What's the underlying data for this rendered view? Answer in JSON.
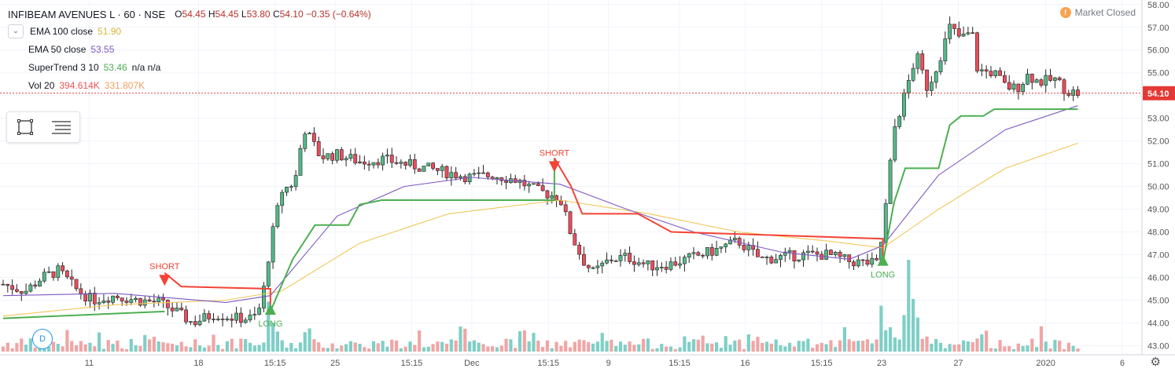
{
  "header": {
    "symbol": "INFIBEAM AVENUES L · 60 · NSE",
    "open_label": "O",
    "open": "54.45",
    "high_label": "H",
    "high": "54.45",
    "low_label": "L",
    "low": "53.80",
    "close_label": "C",
    "close": "54.10",
    "change": "−0.35 (−0.64%)"
  },
  "indicators": [
    {
      "name": "EMA 100 close",
      "value": "51.90",
      "value2": "",
      "color": "#d9b43b"
    },
    {
      "name": "EMA 50 close",
      "value": "53.55",
      "value2": "",
      "color": "#7e57c2"
    },
    {
      "name": "SuperTrend 3 10",
      "value": "53.46",
      "value2": "n/a  n/a",
      "color": "#4caf50"
    },
    {
      "name": "Vol 20",
      "value": "394.614K",
      "value2": "331.807K",
      "color": "#ef5350"
    }
  ],
  "market_status": {
    "icon": "!",
    "text": "Market Closed"
  },
  "timeframe_badge": "D",
  "colors": {
    "up": "#53b987",
    "down": "#eb4d5c",
    "ema100": "#f1c75a",
    "ema50": "#7e57c2",
    "supertrend_up": "#4caf50",
    "supertrend_down": "#f44336",
    "volume_up": "#7fcfc6",
    "volume_down": "#f0a5a5"
  },
  "chart_data": {
    "type": "candlestick",
    "x_tick_labels": [
      "11",
      "18",
      "15:15",
      "25",
      "15:15",
      "Dec",
      "15:15",
      "9",
      "15:15",
      "16",
      "15:15",
      "23",
      "27",
      "2020",
      "6"
    ],
    "y_tick_labels": [
      "43.00",
      "44.00",
      "45.00",
      "46.00",
      "47.00",
      "48.00",
      "49.00",
      "50.00",
      "51.00",
      "52.00",
      "53.00",
      "54.00",
      "55.00",
      "56.00",
      "57.00",
      "58.00"
    ],
    "ylim": [
      42.6,
      58.2
    ],
    "last_price": "54.10",
    "annotations": [
      {
        "text": "SHORT",
        "bar": 0.145,
        "price": 46.25,
        "type": "short"
      },
      {
        "text": "LONG",
        "bar": 0.24,
        "price": 44.5,
        "type": "long"
      },
      {
        "text": "SHORT",
        "bar": 0.495,
        "price": 51.25,
        "type": "short"
      },
      {
        "text": "LONG",
        "bar": 0.79,
        "price": 46.65,
        "type": "long"
      }
    ],
    "key_points": [
      [
        0.0,
        45.7
      ],
      [
        0.02,
        45.4
      ],
      [
        0.035,
        46.0
      ],
      [
        0.05,
        46.3
      ],
      [
        0.065,
        45.5
      ],
      [
        0.08,
        45.0
      ],
      [
        0.1,
        45.2
      ],
      [
        0.12,
        45.0
      ],
      [
        0.14,
        44.9
      ],
      [
        0.155,
        44.5
      ],
      [
        0.17,
        44.0
      ],
      [
        0.19,
        44.4
      ],
      [
        0.21,
        44.2
      ],
      [
        0.225,
        44.2
      ],
      [
        0.232,
        44.8
      ],
      [
        0.24,
        47.5
      ],
      [
        0.25,
        49.8
      ],
      [
        0.262,
        50.2
      ],
      [
        0.27,
        52.6
      ],
      [
        0.285,
        51.3
      ],
      [
        0.3,
        51.4
      ],
      [
        0.32,
        51.1
      ],
      [
        0.34,
        51.2
      ],
      [
        0.36,
        51.0
      ],
      [
        0.38,
        50.8
      ],
      [
        0.4,
        50.6
      ],
      [
        0.42,
        50.4
      ],
      [
        0.44,
        50.5
      ],
      [
        0.46,
        50.3
      ],
      [
        0.48,
        49.8
      ],
      [
        0.5,
        49.5
      ],
      [
        0.51,
        47.9
      ],
      [
        0.52,
        46.8
      ],
      [
        0.53,
        46.2
      ],
      [
        0.545,
        46.8
      ],
      [
        0.56,
        46.9
      ],
      [
        0.58,
        46.5
      ],
      [
        0.6,
        46.6
      ],
      [
        0.62,
        46.9
      ],
      [
        0.64,
        47.2
      ],
      [
        0.66,
        47.6
      ],
      [
        0.68,
        46.8
      ],
      [
        0.7,
        46.9
      ],
      [
        0.72,
        47.0
      ],
      [
        0.74,
        47.0
      ],
      [
        0.76,
        46.7
      ],
      [
        0.785,
        46.6
      ],
      [
        0.79,
        48.0
      ],
      [
        0.8,
        52.5
      ],
      [
        0.81,
        54.1
      ],
      [
        0.82,
        55.8
      ],
      [
        0.83,
        54.3
      ],
      [
        0.84,
        55.5
      ],
      [
        0.85,
        57.0
      ],
      [
        0.86,
        56.5
      ],
      [
        0.87,
        56.8
      ],
      [
        0.875,
        55.1
      ],
      [
        0.89,
        55.0
      ],
      [
        0.9,
        54.4
      ],
      [
        0.91,
        54.3
      ],
      [
        0.92,
        54.9
      ],
      [
        0.93,
        54.6
      ],
      [
        0.945,
        54.7
      ],
      [
        0.955,
        54.2
      ],
      [
        0.965,
        54.1
      ]
    ],
    "ema100_points": [
      [
        0.0,
        44.3
      ],
      [
        0.1,
        44.8
      ],
      [
        0.2,
        45.0
      ],
      [
        0.25,
        45.4
      ],
      [
        0.32,
        47.5
      ],
      [
        0.4,
        48.8
      ],
      [
        0.5,
        49.4
      ],
      [
        0.58,
        48.8
      ],
      [
        0.66,
        48.0
      ],
      [
        0.74,
        47.6
      ],
      [
        0.79,
        47.3
      ],
      [
        0.84,
        49.0
      ],
      [
        0.9,
        50.8
      ],
      [
        0.965,
        51.9
      ]
    ],
    "ema50_points": [
      [
        0.0,
        45.2
      ],
      [
        0.1,
        45.3
      ],
      [
        0.2,
        44.9
      ],
      [
        0.24,
        45.2
      ],
      [
        0.3,
        48.7
      ],
      [
        0.36,
        50.0
      ],
      [
        0.42,
        50.4
      ],
      [
        0.5,
        50.1
      ],
      [
        0.56,
        49.0
      ],
      [
        0.62,
        48.0
      ],
      [
        0.7,
        47.1
      ],
      [
        0.76,
        46.8
      ],
      [
        0.79,
        47.4
      ],
      [
        0.84,
        50.5
      ],
      [
        0.9,
        52.5
      ],
      [
        0.965,
        53.55
      ]
    ],
    "supertrend_points": [
      [
        0.0,
        44.2
      ],
      [
        0.145,
        44.5
      ],
      [
        0.145,
        46.2
      ],
      [
        0.16,
        45.6
      ],
      [
        0.24,
        45.5
      ],
      [
        0.24,
        44.5
      ],
      [
        0.26,
        46.8
      ],
      [
        0.28,
        48.3
      ],
      [
        0.31,
        48.3
      ],
      [
        0.32,
        49.2
      ],
      [
        0.34,
        49.4
      ],
      [
        0.495,
        49.4
      ],
      [
        0.495,
        51.25
      ],
      [
        0.51,
        50.0
      ],
      [
        0.52,
        48.8
      ],
      [
        0.57,
        48.8
      ],
      [
        0.6,
        48.0
      ],
      [
        0.79,
        47.7
      ],
      [
        0.79,
        46.65
      ],
      [
        0.8,
        49.3
      ],
      [
        0.81,
        50.8
      ],
      [
        0.84,
        50.8
      ],
      [
        0.85,
        52.7
      ],
      [
        0.86,
        53.1
      ],
      [
        0.88,
        53.1
      ],
      [
        0.89,
        53.4
      ],
      [
        0.965,
        53.4
      ]
    ]
  }
}
